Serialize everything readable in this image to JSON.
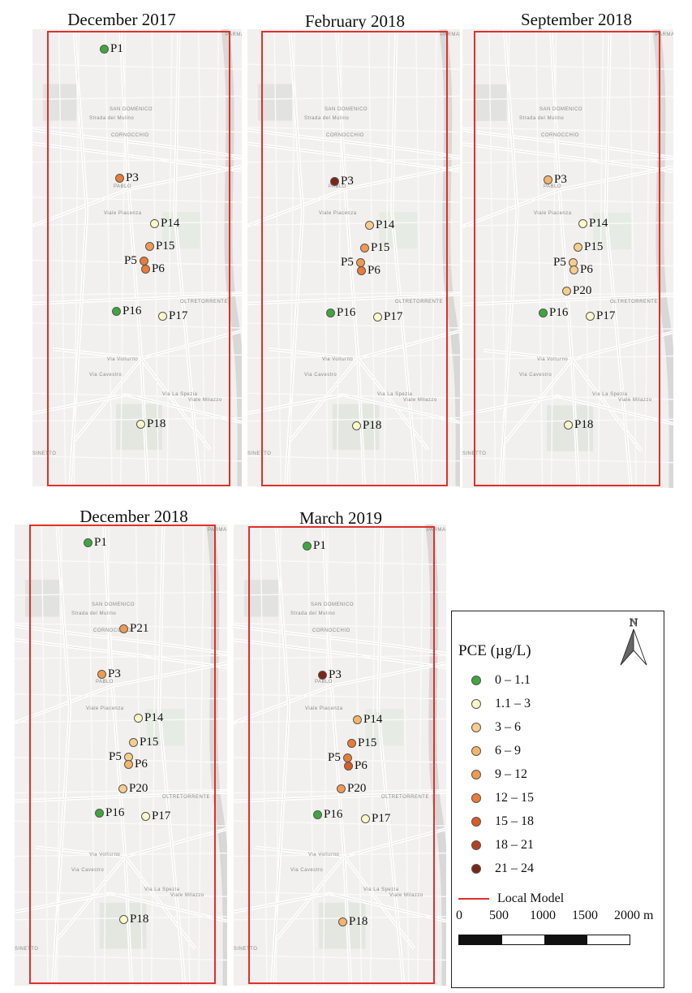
{
  "colors": {
    "boundary": "#e0302b",
    "class_0": "#3fa63f",
    "class_1": "#fbf9c8",
    "class_2": "#f7cd8a",
    "class_3": "#f4b56a",
    "class_4": "#f09a50",
    "class_5": "#eb7b35",
    "class_6": "#d85c24",
    "class_7": "#b0431e",
    "class_8": "#7e2415"
  },
  "panels": [
    {
      "title": "December 2017",
      "sites": [
        {
          "id": "P1",
          "label": "P1",
          "class_index": 0
        },
        {
          "id": "P3",
          "label": "P3",
          "class_index": 5
        },
        {
          "id": "P14",
          "label": "P14",
          "class_index": 1
        },
        {
          "id": "P15",
          "label": "P15",
          "class_index": 4
        },
        {
          "id": "P5",
          "label": "P5",
          "class_index": 5
        },
        {
          "id": "P6",
          "label": "P6",
          "class_index": 5
        },
        {
          "id": "P16",
          "label": "P16",
          "class_index": 0
        },
        {
          "id": "P17",
          "label": "P17",
          "class_index": 1
        },
        {
          "id": "P18",
          "label": "P18",
          "class_index": 1
        }
      ]
    },
    {
      "title": "February 2018",
      "sites": [
        {
          "id": "P3",
          "label": "P3",
          "class_index": 8
        },
        {
          "id": "P14",
          "label": "P14",
          "class_index": 2
        },
        {
          "id": "P15",
          "label": "P15",
          "class_index": 4
        },
        {
          "id": "P5",
          "label": "P5",
          "class_index": 4
        },
        {
          "id": "P6",
          "label": "P6",
          "class_index": 5
        },
        {
          "id": "P16",
          "label": "P16",
          "class_index": 0
        },
        {
          "id": "P17",
          "label": "P17",
          "class_index": 1
        },
        {
          "id": "P18",
          "label": "P18",
          "class_index": 1
        }
      ]
    },
    {
      "title": "September 2018",
      "sites": [
        {
          "id": "P3",
          "label": "P3",
          "class_index": 3
        },
        {
          "id": "P14",
          "label": "P14",
          "class_index": 1
        },
        {
          "id": "P15",
          "label": "P15",
          "class_index": 2
        },
        {
          "id": "P5",
          "label": "P5",
          "class_index": 2
        },
        {
          "id": "P6",
          "label": "P6",
          "class_index": 2
        },
        {
          "id": "P20",
          "label": "P20",
          "class_index": 2
        },
        {
          "id": "P16",
          "label": "P16",
          "class_index": 0
        },
        {
          "id": "P17",
          "label": "P17",
          "class_index": 1
        },
        {
          "id": "P18",
          "label": "P18",
          "class_index": 1
        }
      ]
    },
    {
      "title": "December 2018",
      "sites": [
        {
          "id": "P1",
          "label": "P1",
          "class_index": 0
        },
        {
          "id": "P21",
          "label": "P21",
          "class_index": 4
        },
        {
          "id": "P3",
          "label": "P3",
          "class_index": 4
        },
        {
          "id": "P14",
          "label": "P14",
          "class_index": 1
        },
        {
          "id": "P15",
          "label": "P15",
          "class_index": 2
        },
        {
          "id": "P5",
          "label": "P5",
          "class_index": 2
        },
        {
          "id": "P6",
          "label": "P6",
          "class_index": 3
        },
        {
          "id": "P20",
          "label": "P20",
          "class_index": 2
        },
        {
          "id": "P16",
          "label": "P16",
          "class_index": 0
        },
        {
          "id": "P17",
          "label": "P17",
          "class_index": 1
        },
        {
          "id": "P18",
          "label": "P18",
          "class_index": 1
        }
      ]
    },
    {
      "title": "March 2019",
      "sites": [
        {
          "id": "P1",
          "label": "P1",
          "class_index": 0
        },
        {
          "id": "P3",
          "label": "P3",
          "class_index": 8
        },
        {
          "id": "P14",
          "label": "P14",
          "class_index": 3
        },
        {
          "id": "P15",
          "label": "P15",
          "class_index": 5
        },
        {
          "id": "P5",
          "label": "P5",
          "class_index": 5
        },
        {
          "id": "P6",
          "label": "P6",
          "class_index": 6
        },
        {
          "id": "P20",
          "label": "P20",
          "class_index": 4
        },
        {
          "id": "P16",
          "label": "P16",
          "class_index": 0
        },
        {
          "id": "P17",
          "label": "P17",
          "class_index": 1
        },
        {
          "id": "P18",
          "label": "P18",
          "class_index": 3
        }
      ]
    }
  ],
  "basemap_labels": [
    "SAN DOMENICO",
    "CORNOCCHIO",
    "PABLO",
    "OLTRETORRENTE",
    "Viale Piacenza",
    "Via Volturno",
    "Via La Spezia",
    "Via Cavestro",
    "Strada del Mulino",
    "Viale Milazzo",
    "SINETTO",
    "PARMABAZ"
  ],
  "legend": {
    "title": "PCE (µg/L)",
    "classes": [
      {
        "label": "0 – 1.1",
        "color": "#3fa63f"
      },
      {
        "label": "1.1 – 3",
        "color": "#fbf9c8"
      },
      {
        "label": "3 – 6",
        "color": "#f7cd8a"
      },
      {
        "label": "6 – 9",
        "color": "#f4b56a"
      },
      {
        "label": "9 – 12",
        "color": "#f09a50"
      },
      {
        "label": "12 – 15",
        "color": "#eb7b35"
      },
      {
        "label": "15 – 18",
        "color": "#d85c24"
      },
      {
        "label": "18 – 21",
        "color": "#b0431e"
      },
      {
        "label": "21 – 24",
        "color": "#7e2415"
      }
    ],
    "boundary_label": "Local Model",
    "north_label": "N",
    "scale_ticks": [
      "0",
      "500",
      "1000",
      "1500",
      "2000 m"
    ]
  }
}
